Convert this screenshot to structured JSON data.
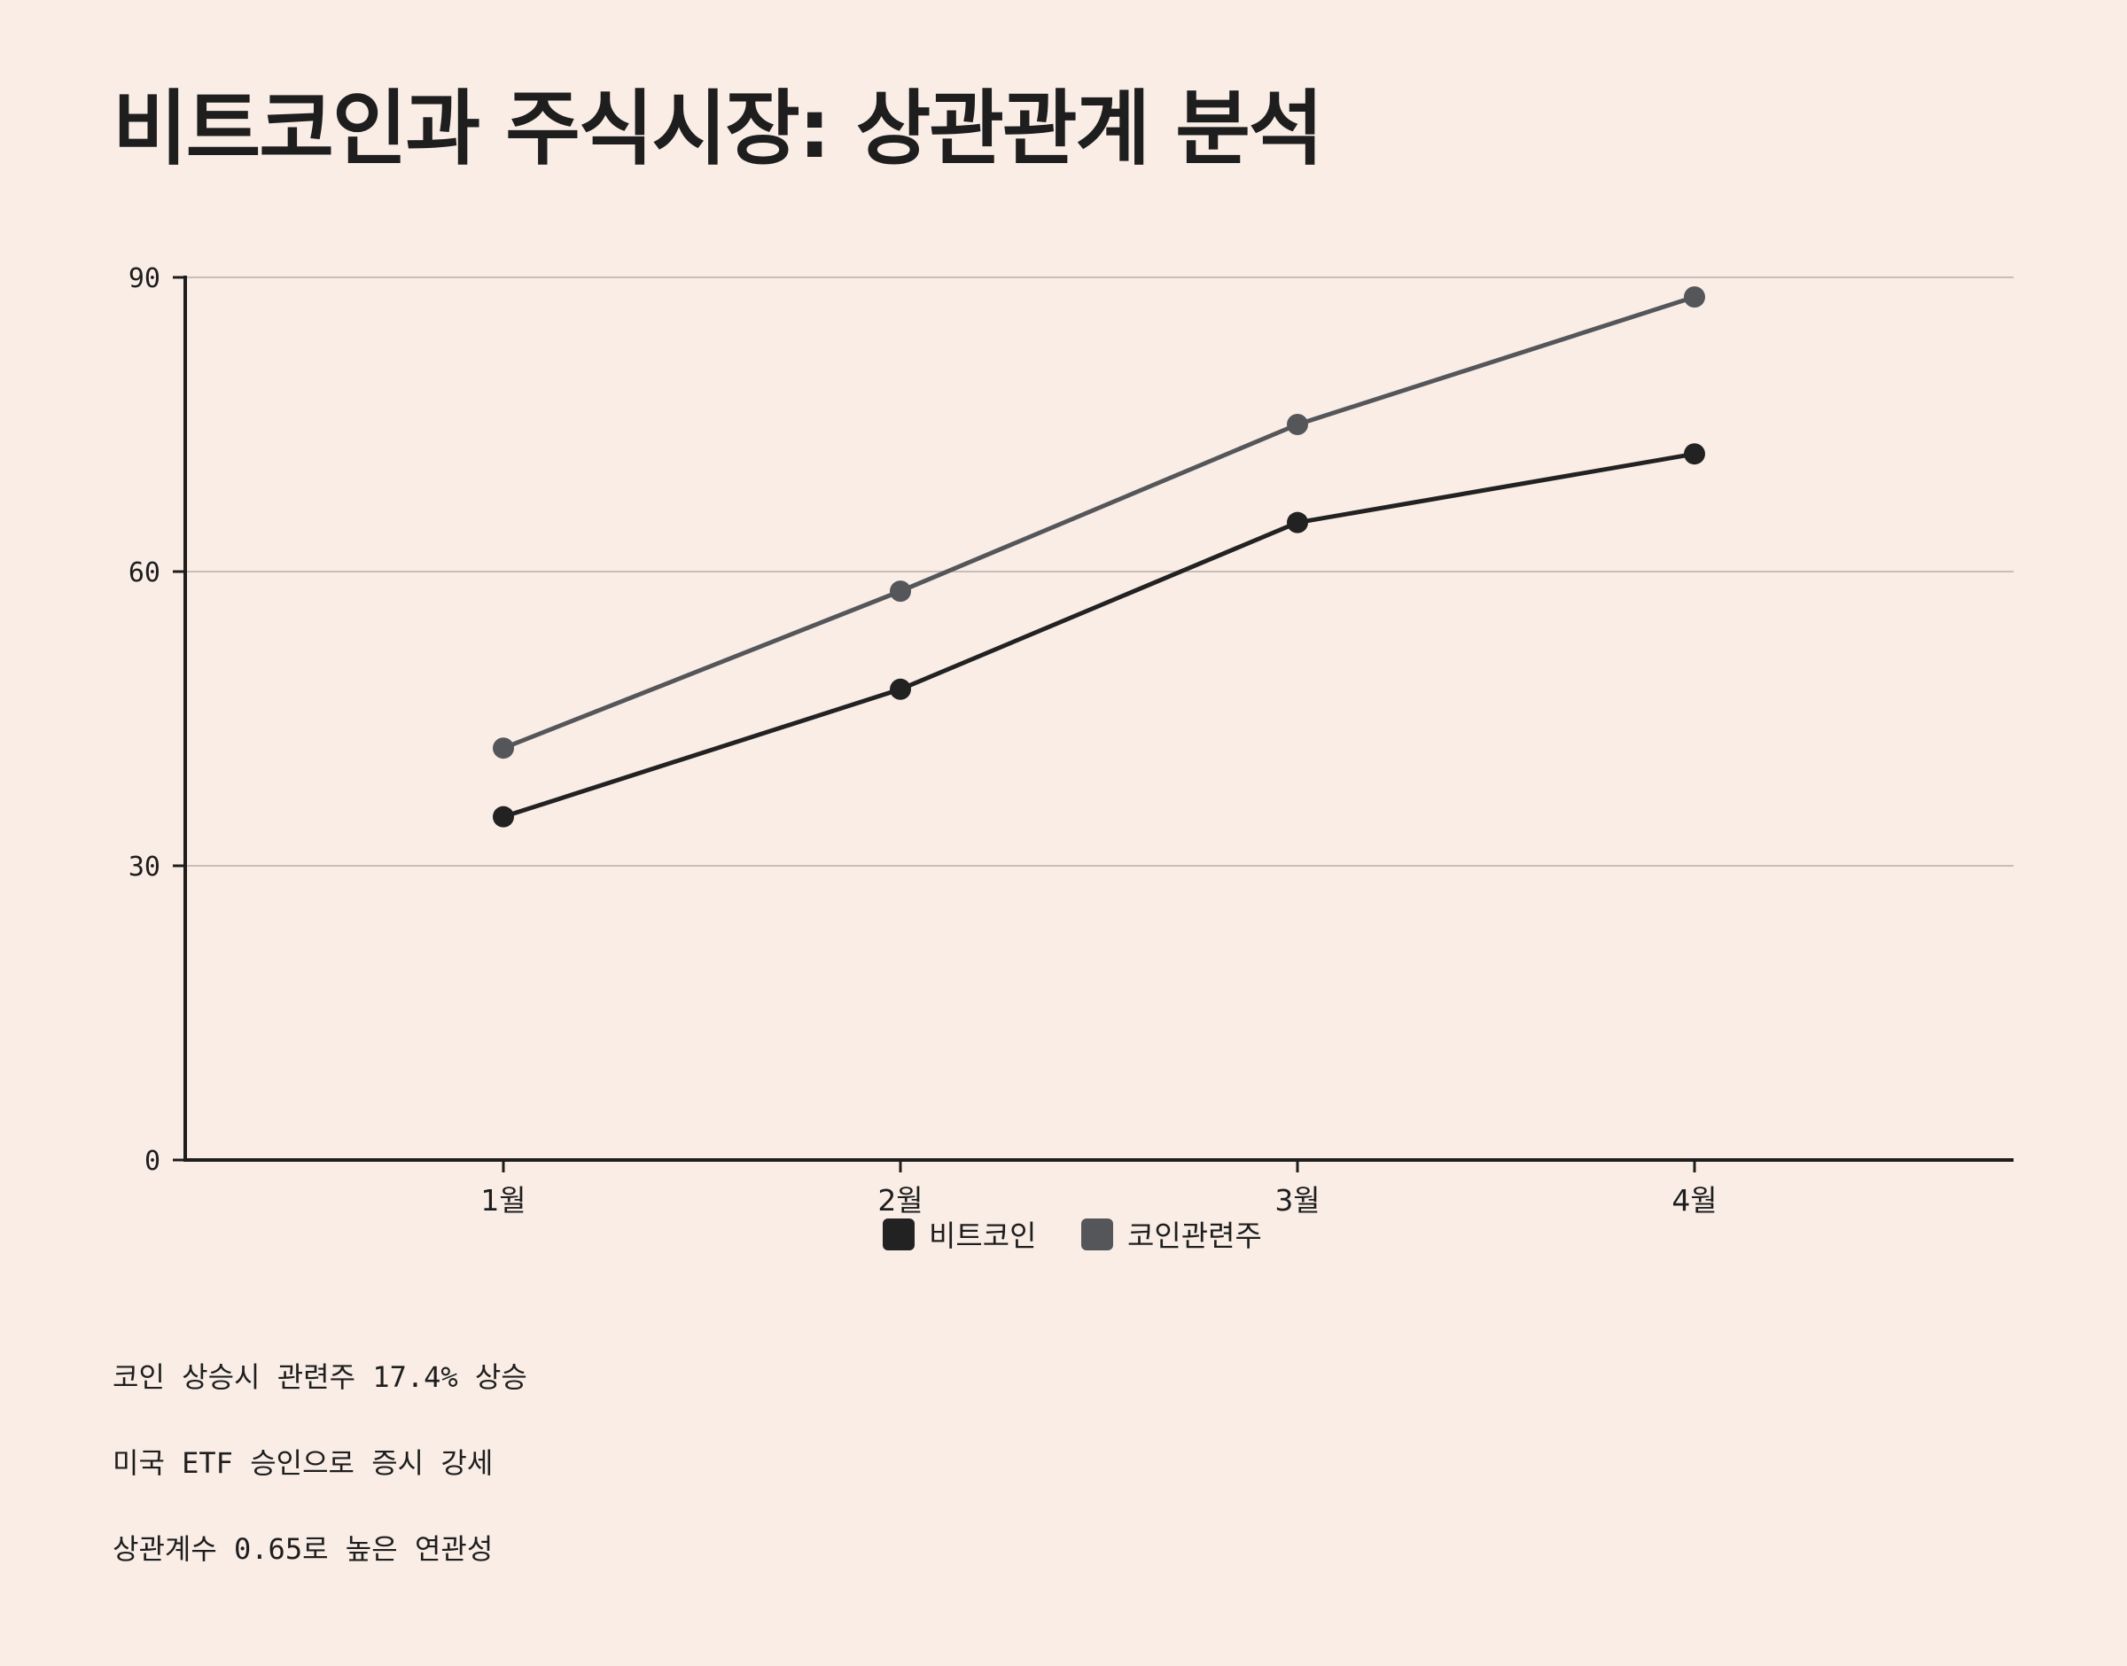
{
  "chart_data": {
    "type": "line",
    "title": "비트코인과 주식시장: 상관관계 분석",
    "categories": [
      "1월",
      "2월",
      "3월",
      "4월"
    ],
    "series": [
      {
        "name": "비트코인",
        "values": [
          35,
          48,
          65,
          72
        ],
        "color": "#222222"
      },
      {
        "name": "코인관련주",
        "values": [
          42,
          58,
          75,
          88
        ],
        "color": "#55565a"
      }
    ],
    "ylim": [
      0,
      90
    ],
    "yticks": [
      0,
      30,
      60,
      90
    ],
    "grid": true,
    "legend": "bottom-center",
    "xlabel": "",
    "ylabel": ""
  },
  "notes": [
    "코인 상승시 관련주 17.4% 상승",
    "미국 ETF 승인으로 증시 강세",
    "상관계수 0.65로 높은 연관성"
  ],
  "colors": {
    "background": "#f9ede6",
    "grid": "#c8bdb7",
    "axis": "#1e1e1e"
  }
}
